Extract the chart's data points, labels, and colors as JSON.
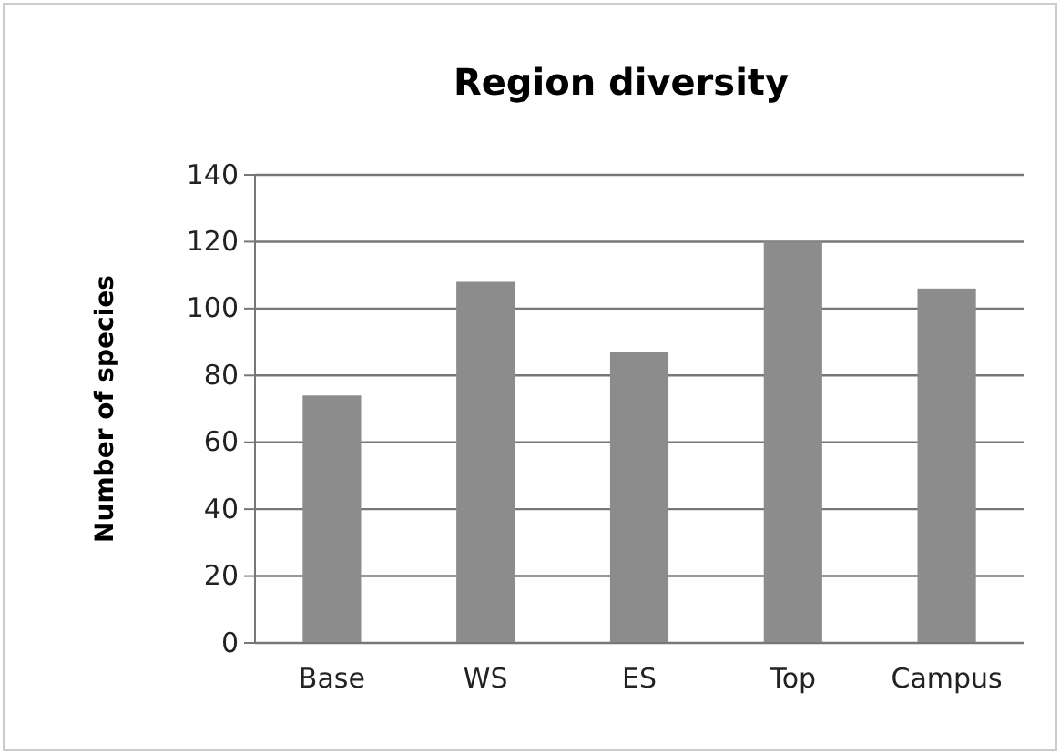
{
  "chart_data": {
    "type": "bar",
    "title": "Region diversity",
    "ylabel": "Number of species",
    "categories": [
      "Base",
      "WS",
      "ES",
      "Top",
      "Campus"
    ],
    "values": [
      74,
      108,
      87,
      120,
      106
    ],
    "color": "#8c8c8c",
    "ylim": [
      0,
      140
    ],
    "yticks": [
      0,
      20,
      40,
      60,
      80,
      100,
      120,
      140
    ],
    "grid": "y"
  }
}
